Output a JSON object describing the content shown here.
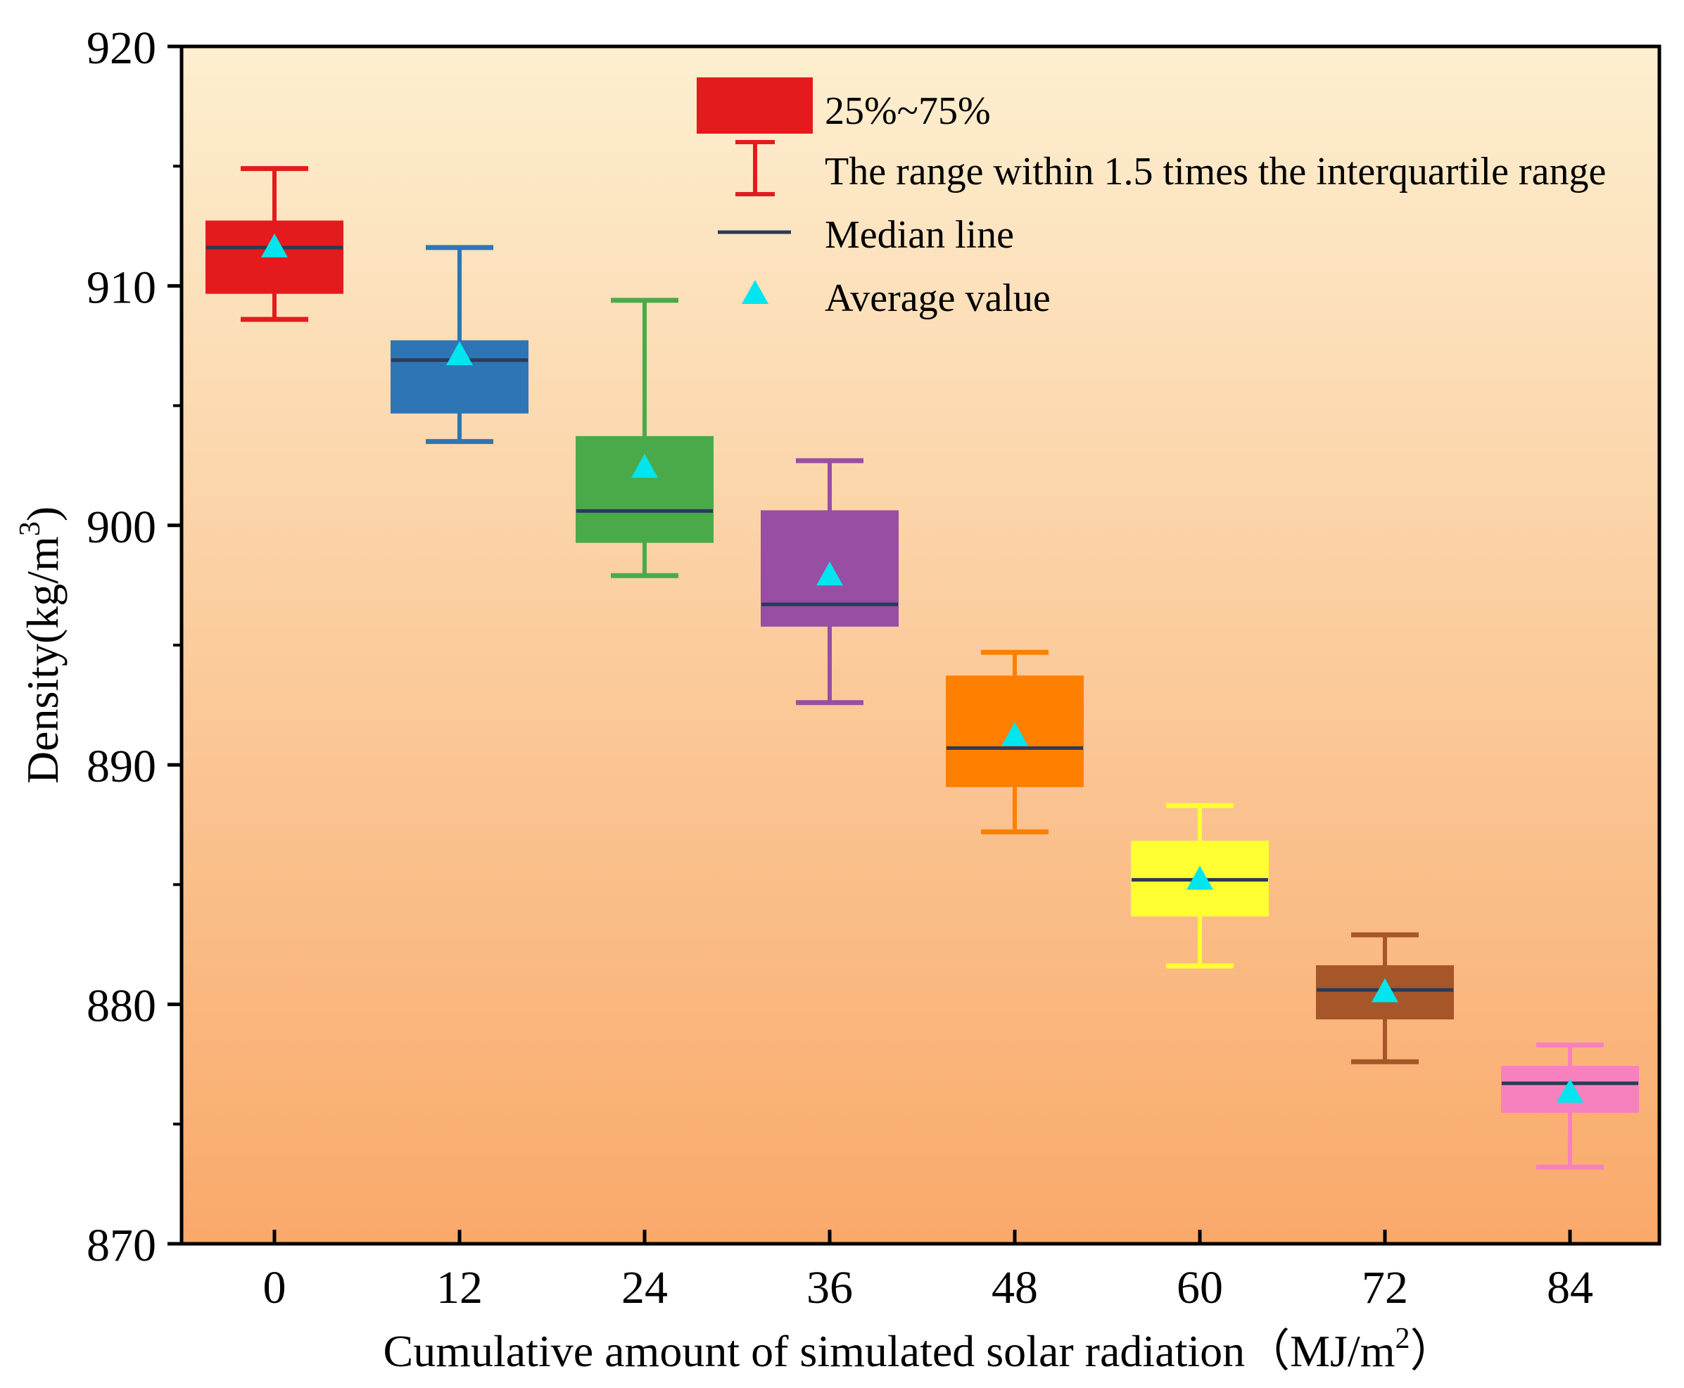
{
  "chart_data": {
    "type": "box",
    "title": "",
    "xlabel": "Cumulative amount of simulated solar radiation（MJ/m",
    "xlabel_sup": "2",
    "xlabel_end": "）",
    "ylabel": "Density(kg/m",
    "ylabel_sup": "3",
    "ylabel_end": ")",
    "ylim": [
      870,
      920
    ],
    "yticks": [
      870,
      880,
      890,
      900,
      910,
      920
    ],
    "categories": [
      "0",
      "12",
      "24",
      "36",
      "48",
      "60",
      "72",
      "84"
    ],
    "boxes": [
      {
        "category": "0",
        "whisker_low": 908.6,
        "q1": 909.7,
        "median": 911.6,
        "q3": 912.7,
        "whisker_high": 914.9,
        "mean": 911.6,
        "color": "#e41a1c"
      },
      {
        "category": "12",
        "whisker_low": 903.5,
        "q1": 904.7,
        "median": 906.9,
        "q3": 907.7,
        "whisker_high": 911.6,
        "mean": 907.1,
        "color": "#2e75b6"
      },
      {
        "category": "24",
        "whisker_low": 897.9,
        "q1": 899.3,
        "median": 900.6,
        "q3": 903.7,
        "whisker_high": 909.4,
        "mean": 902.4,
        "color": "#4aaa4a"
      },
      {
        "category": "36",
        "whisker_low": 892.6,
        "q1": 895.8,
        "median": 896.7,
        "q3": 900.6,
        "whisker_high": 902.7,
        "mean": 897.9,
        "color": "#984ea3"
      },
      {
        "category": "48",
        "whisker_low": 887.2,
        "q1": 889.1,
        "median": 890.7,
        "q3": 893.7,
        "whisker_high": 894.7,
        "mean": 891.2,
        "color": "#ff7f00"
      },
      {
        "category": "60",
        "whisker_low": 881.6,
        "q1": 883.7,
        "median": 885.2,
        "q3": 886.8,
        "whisker_high": 888.3,
        "mean": 885.2,
        "color": "#ffff33"
      },
      {
        "category": "72",
        "whisker_low": 877.6,
        "q1": 879.4,
        "median": 880.6,
        "q3": 881.6,
        "whisker_high": 882.9,
        "mean": 880.5,
        "color": "#a65628"
      },
      {
        "category": "84",
        "whisker_low": 873.2,
        "q1": 875.5,
        "median": 876.7,
        "q3": 877.4,
        "whisker_high": 878.3,
        "mean": 876.3,
        "color": "#f781bf"
      }
    ],
    "legend": {
      "position": "top-right",
      "box_label": "25%~75%",
      "whisker_label": "The range within 1.5 times the interquartile range",
      "median_label": "Median line",
      "mean_label": "Average value"
    },
    "colors": {
      "background_top": "#fdefd0",
      "background_bottom": "#f9a96a",
      "median_line": "#2a3a55",
      "mean_marker": "#00e5ee",
      "legend_box": "#e41a1c"
    },
    "grid": false
  }
}
